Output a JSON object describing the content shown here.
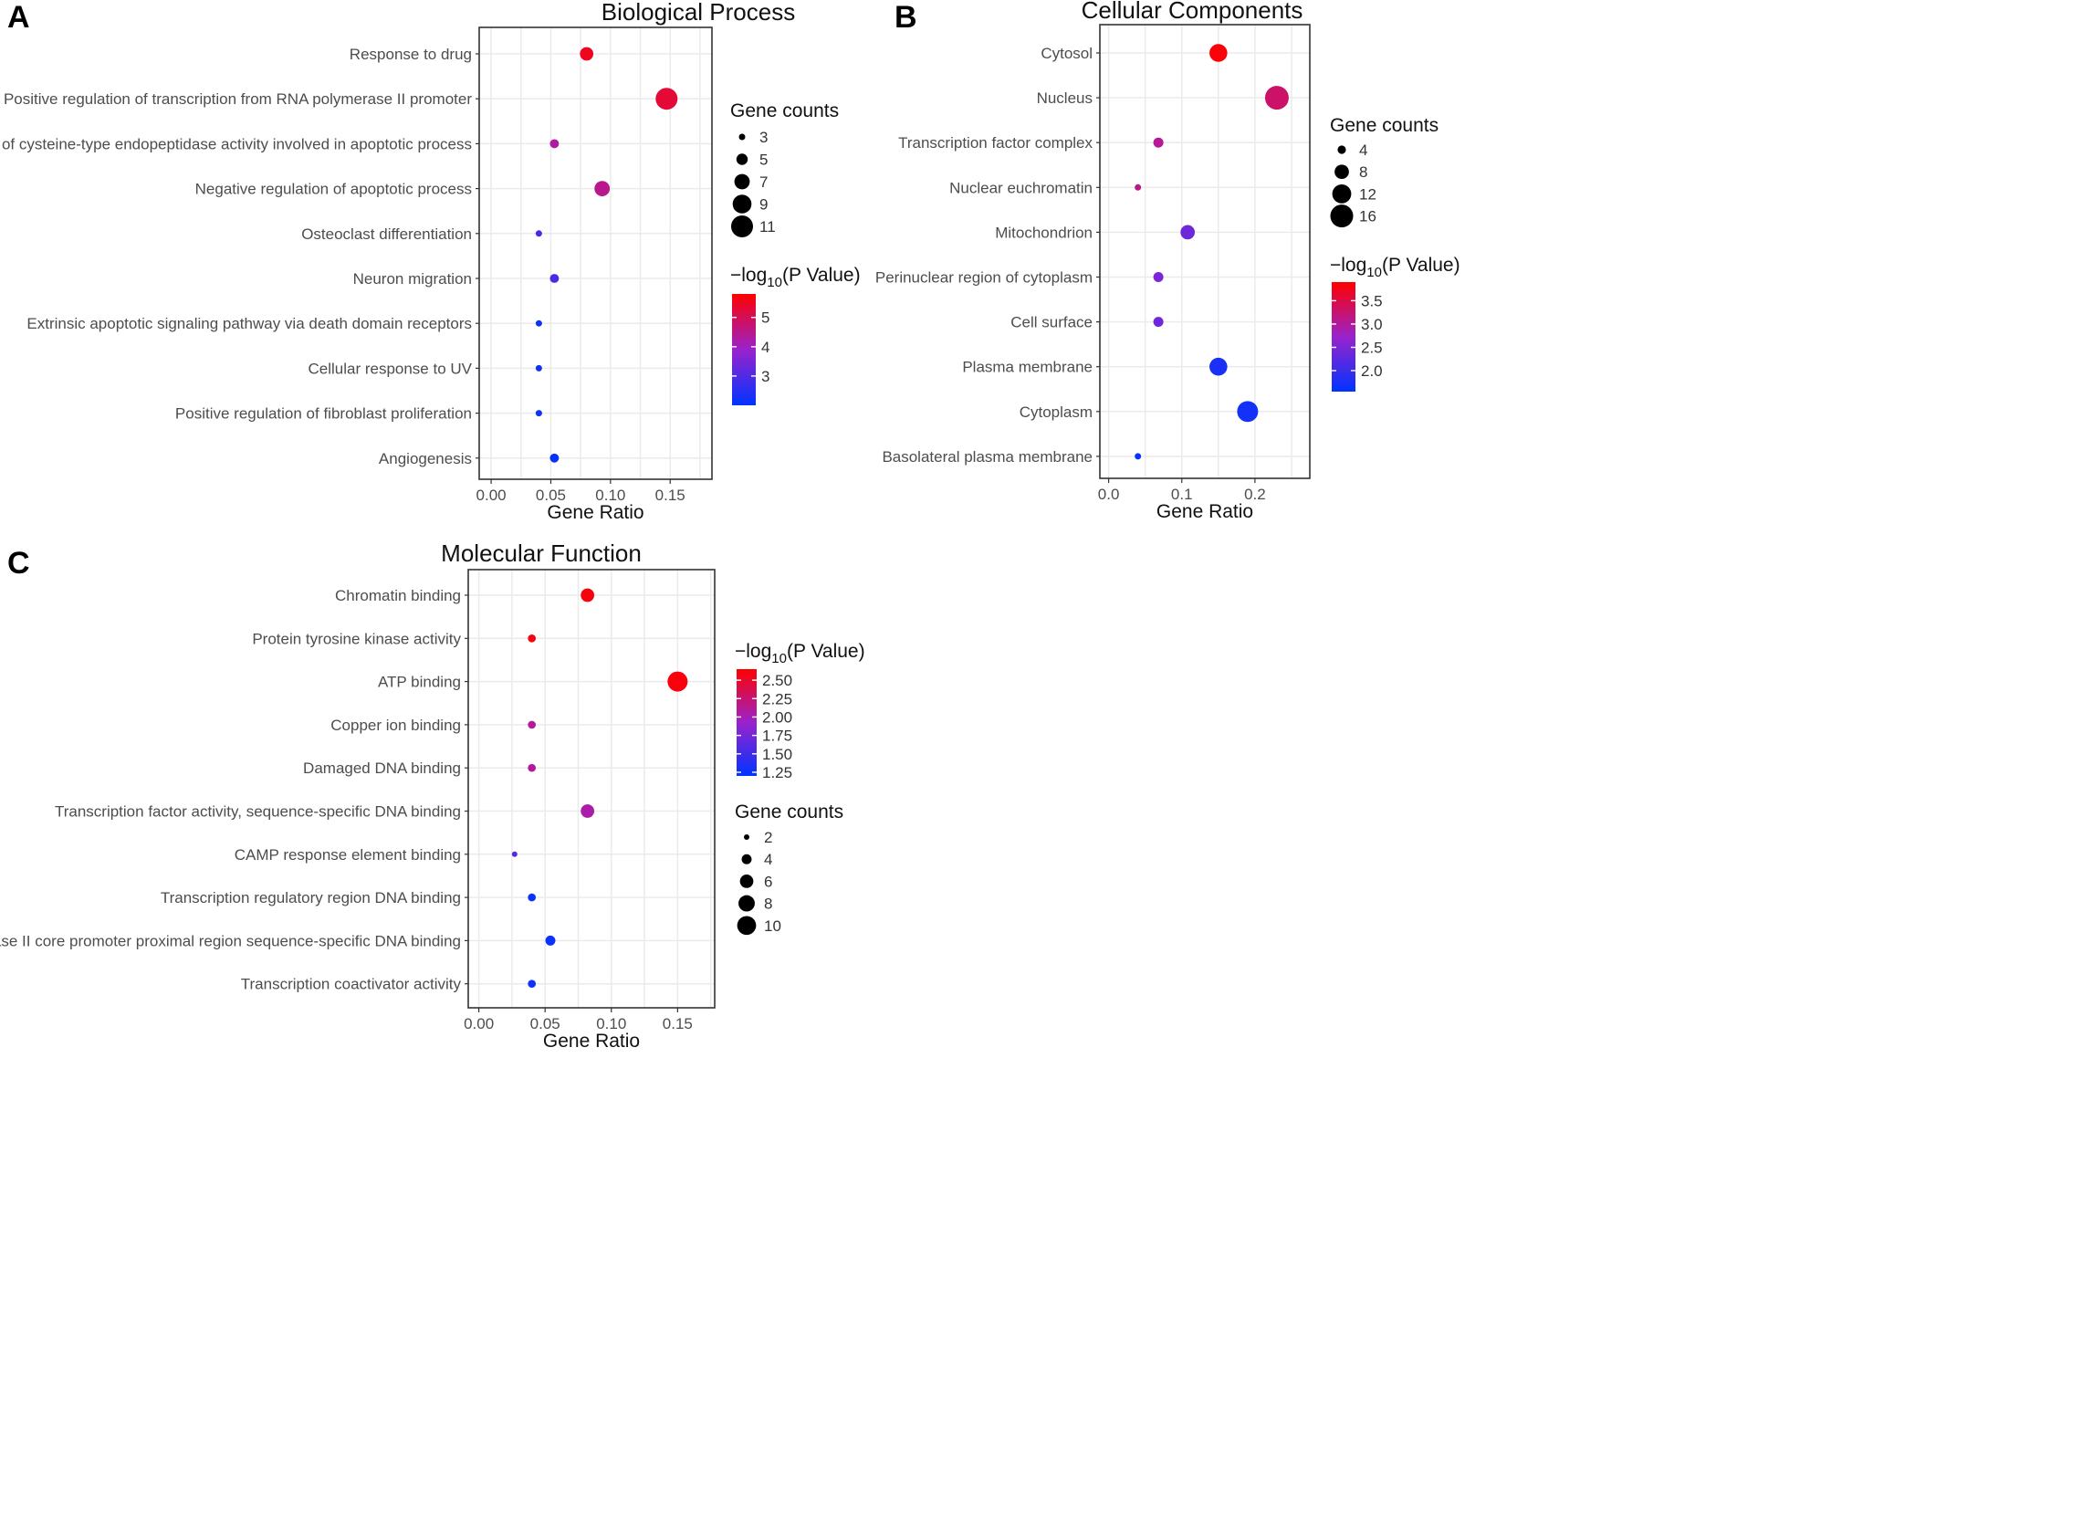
{
  "panels": [
    {
      "letter": "A",
      "chart_data": {
        "type": "scatter",
        "title": "Biological Process",
        "xlabel": "Gene Ratio",
        "ylabel": "",
        "xlim": [
          -0.01,
          0.185
        ],
        "xticks": [
          0.0,
          0.05,
          0.1,
          0.15
        ],
        "xtick_labels": [
          "0.00",
          "0.05",
          "0.10",
          "0.15"
        ],
        "categories": [
          "Response to drug",
          "Positive regulation of transcription from RNA polymerase II promoter",
          "Positive regulation of cysteine-type endopeptidase activity involved in apoptotic process",
          "Negative regulation of apoptotic process",
          "Osteoclast differentiation",
          "Neuron migration",
          "Extrinsic apoptotic signaling pathway via death domain receptors",
          "Cellular response to UV",
          "Positive regulation of fibroblast proliferation",
          "Angiogenesis"
        ],
        "gene_ratio": [
          0.08,
          0.147,
          0.053,
          0.093,
          0.04,
          0.053,
          0.04,
          0.04,
          0.04,
          0.053
        ],
        "gene_counts": [
          6,
          11,
          4,
          7,
          3,
          4,
          3,
          3,
          3,
          4
        ],
        "neg_log10_p": [
          5.5,
          5.3,
          4.3,
          4.5,
          2.8,
          2.9,
          2.2,
          2.2,
          2.2,
          2.1
        ],
        "size_legend": {
          "title": "Gene counts",
          "values": [
            3,
            5,
            7,
            9,
            11
          ],
          "labels": [
            "3",
            "5",
            "7",
            "9",
            "11"
          ]
        },
        "color_legend": {
          "title_prefix": "−log",
          "title_sub": "10",
          "title_suffix": "(P Value)",
          "min": 2.0,
          "max": 5.8,
          "ticks": [
            5,
            4,
            3
          ],
          "tick_labels": [
            "5",
            "4",
            "3"
          ],
          "low_color": "#0033ff",
          "mid_color": "#9922cc",
          "high_color": "#ff0000"
        }
      }
    },
    {
      "letter": "B",
      "chart_data": {
        "type": "scatter",
        "title": "Cellular Components",
        "xlabel": "Gene Ratio",
        "ylabel": "",
        "xlim": [
          -0.012,
          0.275
        ],
        "xticks": [
          0.0,
          0.1,
          0.2
        ],
        "xtick_labels": [
          "0.0",
          "0.1",
          "0.2"
        ],
        "categories": [
          "Cytosol",
          "Nucleus",
          "Transcription factor complex",
          "Nuclear euchromatin",
          "Mitochondrion",
          "Perinuclear region of cytoplasm",
          "Cell surface",
          "Plasma membrane",
          "Cytoplasm",
          "Basolateral plasma membrane"
        ],
        "gene_ratio": [
          0.15,
          0.23,
          0.068,
          0.04,
          0.108,
          0.068,
          0.068,
          0.15,
          0.19,
          0.04
        ],
        "gene_counts": [
          11,
          17,
          5,
          3,
          8,
          5,
          5,
          11,
          14,
          3
        ],
        "neg_log10_p": [
          3.85,
          3.3,
          3.05,
          3.1,
          2.4,
          2.5,
          2.4,
          1.75,
          1.7,
          1.6
        ],
        "size_legend": {
          "title": "Gene counts",
          "values": [
            4,
            8,
            12,
            16
          ],
          "labels": [
            "4",
            "8",
            "12",
            "16"
          ]
        },
        "color_legend": {
          "title_prefix": "−log",
          "title_sub": "10",
          "title_suffix": "(P Value)",
          "min": 1.55,
          "max": 3.9,
          "ticks": [
            3.5,
            3.0,
            2.5,
            2.0
          ],
          "tick_labels": [
            "3.5",
            "3.0",
            "2.5",
            "2.0"
          ],
          "low_color": "#0033ff",
          "mid_color": "#9922cc",
          "high_color": "#ff0000"
        }
      }
    },
    {
      "letter": "C",
      "chart_data": {
        "type": "scatter",
        "title": "Molecular Function",
        "xlabel": "Gene Ratio",
        "ylabel": "",
        "xlim": [
          -0.008,
          0.178
        ],
        "xticks": [
          0.0,
          0.05,
          0.1,
          0.15
        ],
        "xtick_labels": [
          "0.00",
          "0.05",
          "0.10",
          "0.15"
        ],
        "categories": [
          "Chromatin binding",
          "Protein tyrosine kinase activity",
          "ATP binding",
          "Copper ion binding",
          "Damaged DNA binding",
          "Transcription factor activity, sequence-specific DNA binding",
          "CAMP response element binding",
          "Transcription regulatory region DNA binding",
          "RNA polymerase II core promoter proximal region sequence-specific DNA binding",
          "Transcription coactivator activity"
        ],
        "gene_ratio": [
          0.082,
          0.04,
          0.15,
          0.04,
          0.04,
          0.082,
          0.027,
          0.04,
          0.054,
          0.04
        ],
        "gene_counts": [
          6,
          3,
          11,
          3,
          3,
          6,
          2,
          3,
          4,
          3
        ],
        "neg_log10_p": [
          2.6,
          2.6,
          2.6,
          2.1,
          2.1,
          2.05,
          1.6,
          1.25,
          1.25,
          1.25
        ],
        "size_legend": {
          "title": "Gene counts",
          "values": [
            2,
            4,
            6,
            8,
            10
          ],
          "labels": [
            "2",
            "4",
            "6",
            "8",
            "10"
          ]
        },
        "color_legend": {
          "title_prefix": "−log",
          "title_sub": "10",
          "title_suffix": "(P Value)",
          "min": 1.2,
          "max": 2.65,
          "ticks": [
            2.5,
            2.25,
            2.0,
            1.75,
            1.5,
            1.25
          ],
          "tick_labels": [
            "2.50",
            "2.25",
            "2.00",
            "1.75",
            "1.50",
            "1.25"
          ],
          "low_color": "#0033ff",
          "mid_color": "#9922cc",
          "high_color": "#ff0000"
        }
      }
    }
  ]
}
